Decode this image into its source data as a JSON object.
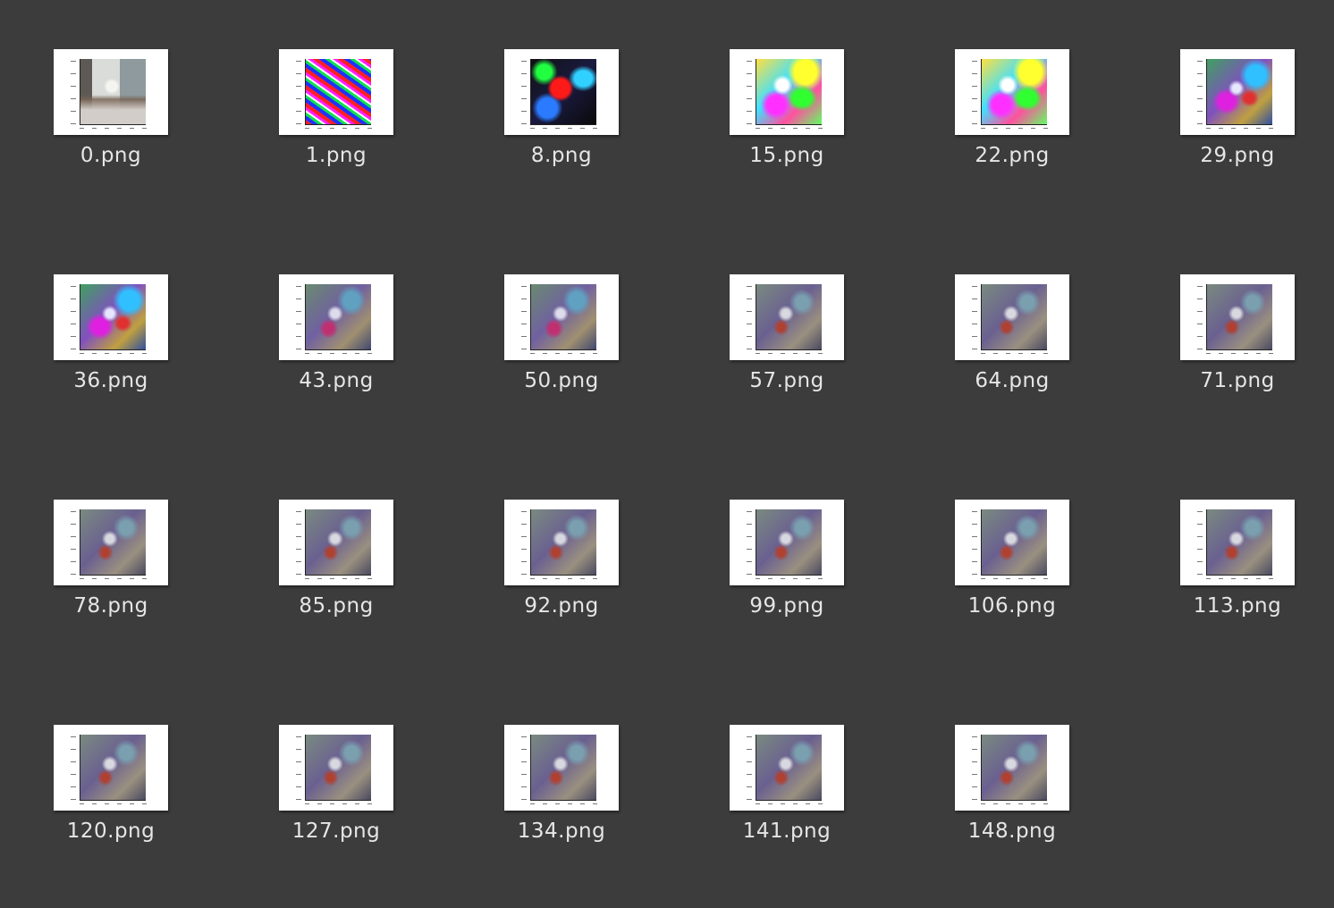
{
  "files": [
    {
      "name": "0.png",
      "thumb": "photo"
    },
    {
      "name": "1.png",
      "thumb": "noise"
    },
    {
      "name": "8.png",
      "thumb": "saturated-dark"
    },
    {
      "name": "15.png",
      "thumb": "saturated-bright"
    },
    {
      "name": "22.png",
      "thumb": "saturated-bright"
    },
    {
      "name": "29.png",
      "thumb": "vivid-blend"
    },
    {
      "name": "36.png",
      "thumb": "vivid-blend"
    },
    {
      "name": "43.png",
      "thumb": "mid-blend"
    },
    {
      "name": "50.png",
      "thumb": "mid-blend"
    },
    {
      "name": "57.png",
      "thumb": "muted-blend"
    },
    {
      "name": "64.png",
      "thumb": "muted-blend"
    },
    {
      "name": "71.png",
      "thumb": "muted-blend"
    },
    {
      "name": "78.png",
      "thumb": "muted-blend"
    },
    {
      "name": "85.png",
      "thumb": "muted-blend"
    },
    {
      "name": "92.png",
      "thumb": "muted-blend"
    },
    {
      "name": "99.png",
      "thumb": "muted-blend"
    },
    {
      "name": "106.png",
      "thumb": "muted-blend"
    },
    {
      "name": "113.png",
      "thumb": "muted-blend"
    },
    {
      "name": "120.png",
      "thumb": "muted-blend"
    },
    {
      "name": "127.png",
      "thumb": "muted-blend"
    },
    {
      "name": "134.png",
      "thumb": "muted-blend"
    },
    {
      "name": "141.png",
      "thumb": "muted-blend"
    },
    {
      "name": "148.png",
      "thumb": "muted-blend"
    }
  ],
  "colors": {
    "background": "#3c3c3c",
    "label": "#e6e6e6",
    "thumb_frame": "#ffffff"
  }
}
